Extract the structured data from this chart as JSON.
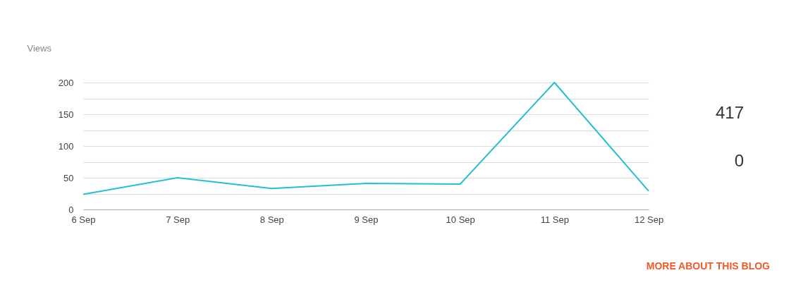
{
  "chart_data": {
    "type": "line",
    "ylabel": "Views",
    "categories": [
      "6 Sep",
      "7 Sep",
      "8 Sep",
      "9 Sep",
      "10 Sep",
      "11 Sep",
      "12 Sep"
    ],
    "series": [
      {
        "color": "#26bfd0",
        "values": [
          24,
          50,
          33,
          41,
          40,
          200,
          29
        ]
      }
    ],
    "ylim": [
      0,
      200
    ],
    "yticks": [
      0,
      {
        "value": 25,
        "label": null
      },
      50,
      {
        "value": 75,
        "label": null
      },
      100,
      {
        "value": 125,
        "label": null
      },
      150,
      {
        "value": 175,
        "label": null
      },
      200
    ],
    "grid": "y",
    "marker": "none",
    "line_style": "solid",
    "annotations": [
      "417",
      "0",
      "MORE ABOUT THIS BLOG"
    ]
  }
}
